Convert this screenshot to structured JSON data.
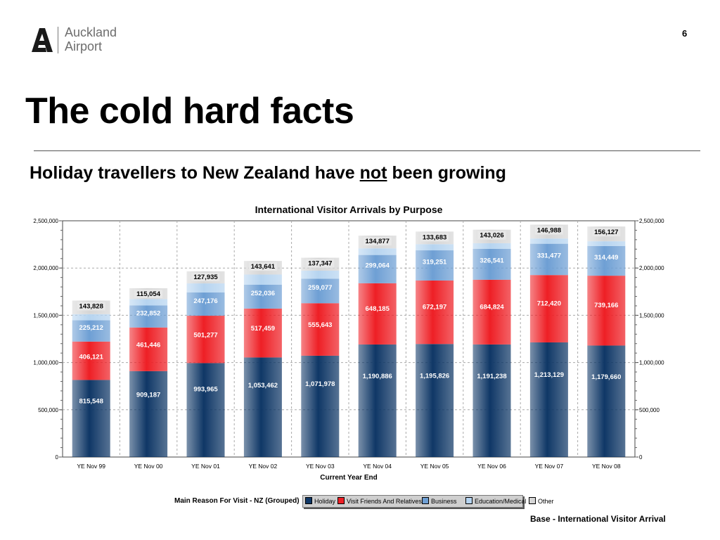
{
  "brand": {
    "line1": "Auckland",
    "line2": "Airport"
  },
  "page_number": "6",
  "title": "The cold hard facts",
  "subtitle": {
    "before": "Holiday travellers to New Zealand have ",
    "emphasis": "not",
    "after": " been growing"
  },
  "source_note": "Base - International Visitor Arrival",
  "legend_title": "Main Reason For Visit - NZ (Grouped)",
  "chart_data": {
    "type": "bar",
    "stacked": true,
    "title": "International Visitor Arrivals by Purpose",
    "xlabel": "Current Year End",
    "ylabel": "",
    "ylim": [
      0,
      2500000
    ],
    "yticks": [
      0,
      500000,
      1000000,
      1500000,
      2000000,
      2500000
    ],
    "ytick_labels": [
      "0",
      "500,000",
      "1,000,000",
      "1,500,000",
      "2,000,000",
      "2,500,000"
    ],
    "grid": true,
    "legend_position": "bottom",
    "categories": [
      "YE Nov 99",
      "YE Nov 00",
      "YE Nov 01",
      "YE Nov 02",
      "YE Nov 03",
      "YE Nov 04",
      "YE Nov 05",
      "YE Nov 06",
      "YE Nov 07",
      "YE Nov 08"
    ],
    "series": [
      {
        "name": "Holiday",
        "color": "#0f3766",
        "label_color": "#ffffff",
        "values": [
          815548,
          909187,
          993965,
          1053462,
          1071978,
          1190886,
          1195826,
          1191238,
          1213129,
          1179660
        ],
        "labels": [
          "815,548",
          "909,187",
          "993,965",
          "1,053,462",
          "1,071,978",
          "1,190,886",
          "1,195,826",
          "1,191,238",
          "1,213,129",
          "1,179,660"
        ]
      },
      {
        "name": "Visit Friends And Relatives",
        "color": "#ee1f25",
        "label_color": "#ffffff",
        "values": [
          406121,
          461446,
          501277,
          517459,
          555643,
          648185,
          672197,
          684824,
          712420,
          739166
        ],
        "labels": [
          "406,121",
          "461,446",
          "501,277",
          "517,459",
          "555,643",
          "648,185",
          "672,197",
          "684,824",
          "712,420",
          "739,166"
        ]
      },
      {
        "name": "Business",
        "color": "#6e9fd4",
        "label_color": "#ffffff",
        "values": [
          225212,
          232852,
          247176,
          252036,
          259077,
          299064,
          319251,
          326541,
          331477,
          314449
        ],
        "labels": [
          "225,212",
          "232,852",
          "247,176",
          "252,036",
          "259,077",
          "299,064",
          "319,251",
          "326,541",
          "331,477",
          "314,449"
        ]
      },
      {
        "name": "Education/Medical",
        "color": "#b6d4f0",
        "label_color": "",
        "values": [
          65000,
          68000,
          95000,
          108000,
          85000,
          70000,
          65000,
          60000,
          55000,
          50000
        ],
        "labels": []
      },
      {
        "name": "Other",
        "color": "#d6d6d6",
        "label_color": "#000000",
        "values": [
          143828,
          115054,
          127935,
          143641,
          137347,
          134877,
          133683,
          143026,
          146988,
          156127
        ],
        "labels": [
          "143,828",
          "115,054",
          "127,935",
          "143,641",
          "137,347",
          "134,877",
          "133,683",
          "143,026",
          "146,988",
          "156,127"
        ]
      }
    ]
  }
}
